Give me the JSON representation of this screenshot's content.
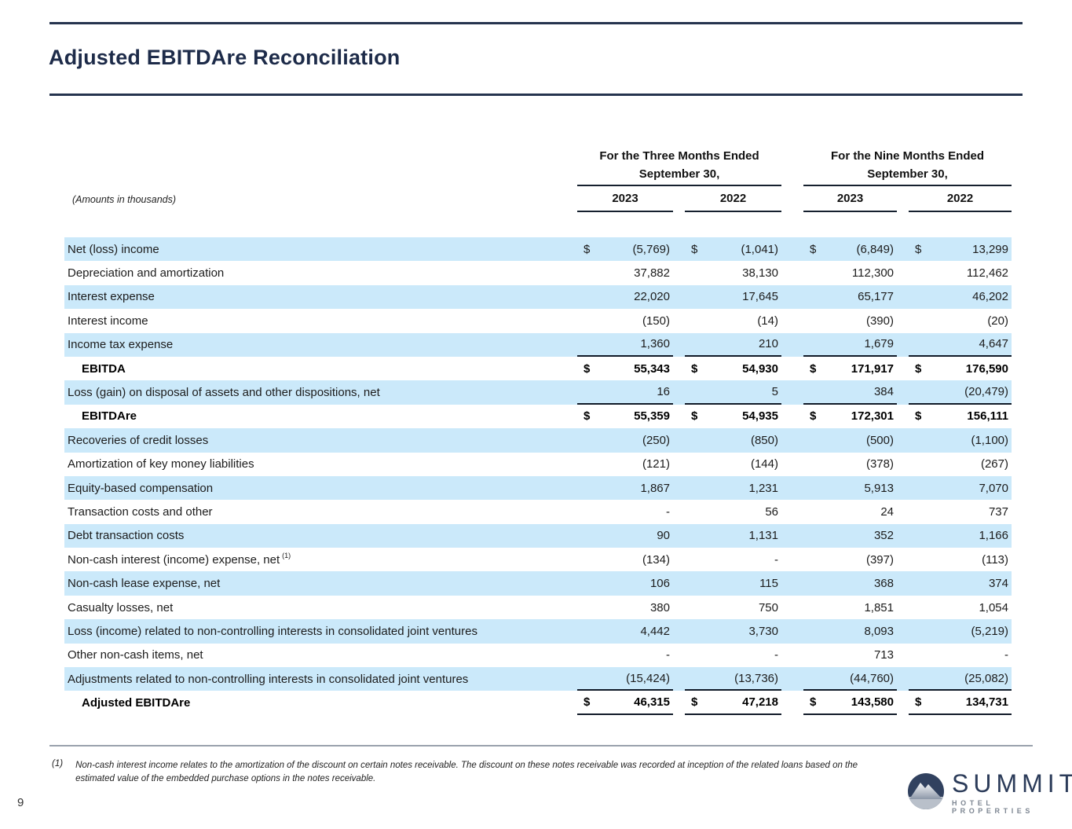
{
  "header": {
    "title": "Adjusted EBITDAre Reconciliation"
  },
  "table": {
    "amounts_note": "(Amounts in thousands)",
    "col_groups": [
      {
        "line1": "For the Three Months Ended",
        "line2": "September 30,"
      },
      {
        "line1": "For the Nine Months Ended",
        "line2": "September 30,"
      }
    ],
    "years": [
      "2023",
      "2022",
      "2023",
      "2022"
    ],
    "rows": [
      {
        "label": "Net (loss) income",
        "stripe": true,
        "dollar": true,
        "values": [
          "(5,769)",
          "(1,041)",
          "(6,849)",
          "13,299"
        ]
      },
      {
        "label": "Depreciation and amortization",
        "stripe": false,
        "values": [
          "37,882",
          "38,130",
          "112,300",
          "112,462"
        ]
      },
      {
        "label": "Interest expense",
        "stripe": true,
        "values": [
          "22,020",
          "17,645",
          "65,177",
          "46,202"
        ]
      },
      {
        "label": "Interest income",
        "stripe": false,
        "values": [
          "(150)",
          "(14)",
          "(390)",
          "(20)"
        ]
      },
      {
        "label": "Income tax expense",
        "stripe": true,
        "underline": true,
        "values": [
          "1,360",
          "210",
          "1,679",
          "4,647"
        ]
      },
      {
        "label": "EBITDA",
        "stripe": false,
        "emphasis": true,
        "dollar": true,
        "values": [
          "55,343",
          "54,930",
          "171,917",
          "176,590"
        ]
      },
      {
        "label": "Loss (gain) on disposal of assets and other dispositions, net",
        "stripe": true,
        "underline": true,
        "values": [
          "16",
          "5",
          "384",
          "(20,479)"
        ]
      },
      {
        "label": "EBITDAre",
        "stripe": false,
        "emphasis": true,
        "dollar": true,
        "values": [
          "55,359",
          "54,935",
          "172,301",
          "156,111"
        ]
      },
      {
        "label": "Recoveries of credit losses",
        "stripe": true,
        "values": [
          "(250)",
          "(850)",
          "(500)",
          "(1,100)"
        ]
      },
      {
        "label": "Amortization of key money liabilities",
        "stripe": false,
        "values": [
          "(121)",
          "(144)",
          "(378)",
          "(267)"
        ]
      },
      {
        "label": "Equity-based compensation",
        "stripe": true,
        "values": [
          "1,867",
          "1,231",
          "5,913",
          "7,070"
        ]
      },
      {
        "label": "Transaction costs and other",
        "stripe": false,
        "values": [
          "-",
          "56",
          "24",
          "737"
        ]
      },
      {
        "label": "Debt transaction costs",
        "stripe": true,
        "values": [
          "90",
          "1,131",
          "352",
          "1,166"
        ]
      },
      {
        "label": "Non-cash interest (income) expense, net",
        "label_sup": "(1)",
        "stripe": false,
        "values": [
          "(134)",
          "-",
          "(397)",
          "(113)"
        ]
      },
      {
        "label": "Non-cash lease expense, net",
        "stripe": true,
        "values": [
          "106",
          "115",
          "368",
          "374"
        ]
      },
      {
        "label": "Casualty losses, net",
        "stripe": false,
        "values": [
          "380",
          "750",
          "1,851",
          "1,054"
        ]
      },
      {
        "label": "Loss (income) related to non-controlling interests in consolidated joint ventures",
        "stripe": true,
        "values": [
          "4,442",
          "3,730",
          "8,093",
          "(5,219)"
        ]
      },
      {
        "label": "Other non-cash items, net",
        "stripe": false,
        "values": [
          "-",
          "-",
          "713",
          "-"
        ]
      },
      {
        "label": "Adjustments related to non-controlling interests in consolidated joint ventures",
        "stripe": true,
        "underline": true,
        "values": [
          "(15,424)",
          "(13,736)",
          "(44,760)",
          "(25,082)"
        ]
      },
      {
        "label": "Adjusted EBITDAre",
        "stripe": false,
        "emphasis": true,
        "dollar": true,
        "underline": true,
        "values": [
          "46,315",
          "47,218",
          "143,580",
          "134,731"
        ]
      }
    ]
  },
  "footnote": {
    "marker": "(1)",
    "text": "Non-cash interest income relates to the amortization of the discount on certain notes receivable. The discount on these notes receivable was recorded at inception of the related loans based on the estimated value of the embedded purchase options in the notes receivable."
  },
  "footer": {
    "page_number": "9",
    "logo": {
      "name": "SUMMIT",
      "tagline": "HOTEL PROPERTIES"
    }
  },
  "colors": {
    "accent_navy": "#26344e",
    "stripe_blue": "#cbe9fa",
    "rule_gray": "#9aa2ad"
  }
}
